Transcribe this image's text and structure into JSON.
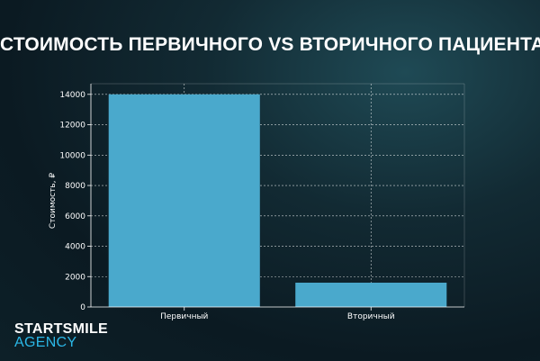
{
  "chart_data": {
    "type": "bar",
    "title": "СТОИМОСТЬ ПЕРВИЧНОГО VS ВТОРИЧНОГО ПАЦИЕНТА",
    "categories": [
      "Первичный",
      "Вторичный"
    ],
    "values": [
      14000,
      1600
    ],
    "xlabel": "",
    "ylabel": "Стоимость, ₽",
    "ylim": [
      0,
      14700
    ],
    "yticks": [
      0,
      2000,
      4000,
      6000,
      8000,
      10000,
      12000,
      14000
    ],
    "grid": true,
    "bar_color": "#4aa9cc",
    "grid_color": "#ffffff"
  },
  "logo": {
    "line1": "STARTSMILE",
    "line2": "AGENCY",
    "accent_color": "#2bb8e8"
  }
}
